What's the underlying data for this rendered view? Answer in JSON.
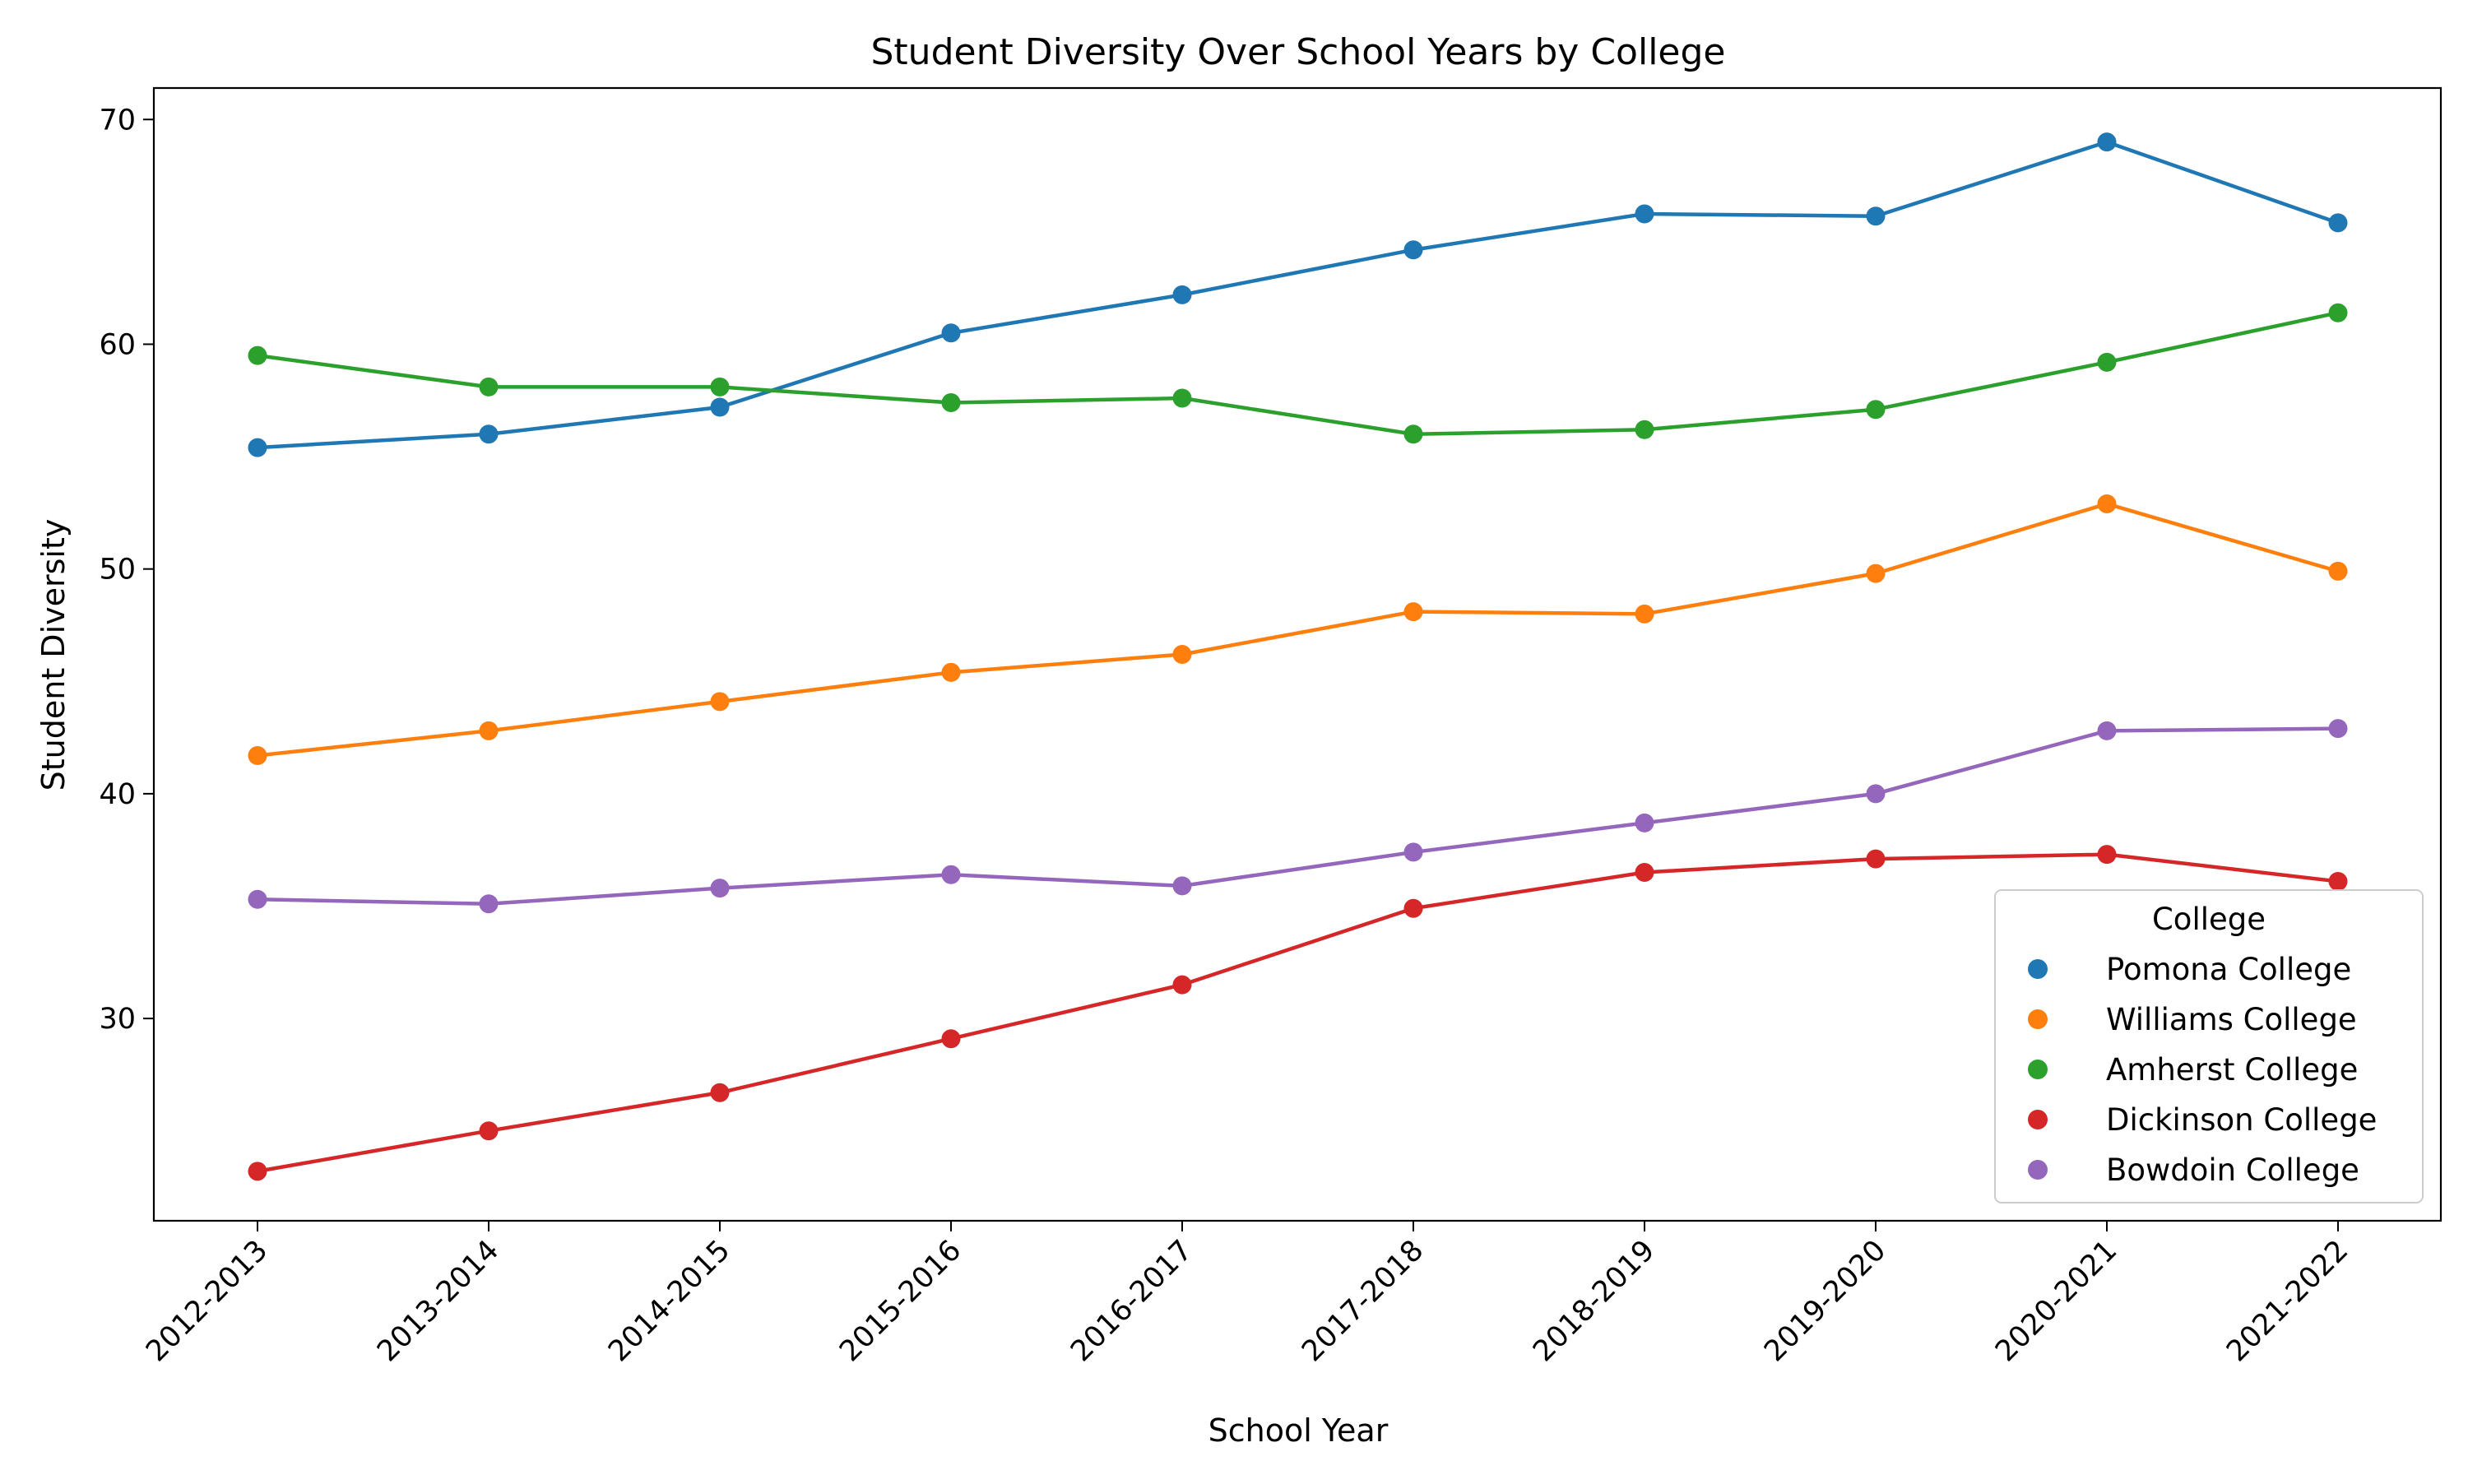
{
  "chart_data": {
    "type": "line",
    "title": "Student Diversity Over School Years by College",
    "xlabel": "School Year",
    "ylabel": "Student Diversity",
    "categories": [
      "2012-2013",
      "2013-2014",
      "2014-2015",
      "2015-2016",
      "2016-2017",
      "2017-2018",
      "2018-2019",
      "2019-2020",
      "2020-2021",
      "2021-2022"
    ],
    "ylim": [
      21,
      71.4
    ],
    "yticks": [
      30,
      40,
      50,
      60,
      70
    ],
    "grid": false,
    "legend": {
      "title": "College",
      "position": "lower-right"
    },
    "series": [
      {
        "name": "Pomona College",
        "color": "#1f77b4",
        "values": [
          55.4,
          56.0,
          57.2,
          60.5,
          62.2,
          64.2,
          65.8,
          65.7,
          69.0,
          65.4
        ]
      },
      {
        "name": "Williams College",
        "color": "#ff7f0e",
        "values": [
          41.7,
          42.8,
          44.1,
          45.4,
          46.2,
          48.1,
          48.0,
          49.8,
          52.9,
          49.9
        ]
      },
      {
        "name": "Amherst College",
        "color": "#2ca02c",
        "values": [
          59.5,
          58.1,
          58.1,
          57.4,
          57.6,
          56.0,
          56.2,
          57.1,
          59.2,
          61.4
        ]
      },
      {
        "name": "Dickinson College",
        "color": "#d62728",
        "values": [
          23.2,
          25.0,
          26.7,
          29.1,
          31.5,
          34.9,
          36.5,
          37.1,
          37.3,
          36.1
        ]
      },
      {
        "name": "Bowdoin College",
        "color": "#9467bd",
        "values": [
          35.3,
          35.1,
          35.8,
          36.4,
          35.9,
          37.4,
          38.7,
          40.0,
          42.8,
          42.9
        ]
      }
    ]
  }
}
